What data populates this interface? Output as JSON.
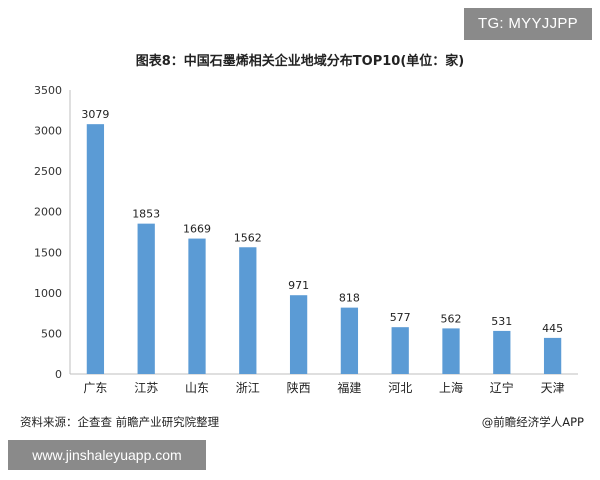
{
  "overlay_tag": "TG: MYYJJPP",
  "source_note": "资料来源：企查查 前瞻产业研究院整理",
  "credit": "@前瞻经济学人APP",
  "url_banner": "www.jinshaleyuapp.com",
  "colors": {
    "bar": "#5b9bd5",
    "axis": "#bfbfbf",
    "tag_bg": "#8a8a8a"
  },
  "chart_data": {
    "type": "bar",
    "title": "图表8：中国石墨烯相关企业地域分布TOP10(单位：家)",
    "categories": [
      "广东",
      "江苏",
      "山东",
      "浙江",
      "陕西",
      "福建",
      "河北",
      "上海",
      "辽宁",
      "天津"
    ],
    "values": [
      3079,
      1853,
      1669,
      1562,
      971,
      818,
      577,
      562,
      531,
      445
    ],
    "yticks": [
      "0",
      "500",
      "1000",
      "1500",
      "2000",
      "2500",
      "3000",
      "3500"
    ],
    "ylim": [
      0,
      3500
    ],
    "grid": false,
    "legend": "none"
  }
}
